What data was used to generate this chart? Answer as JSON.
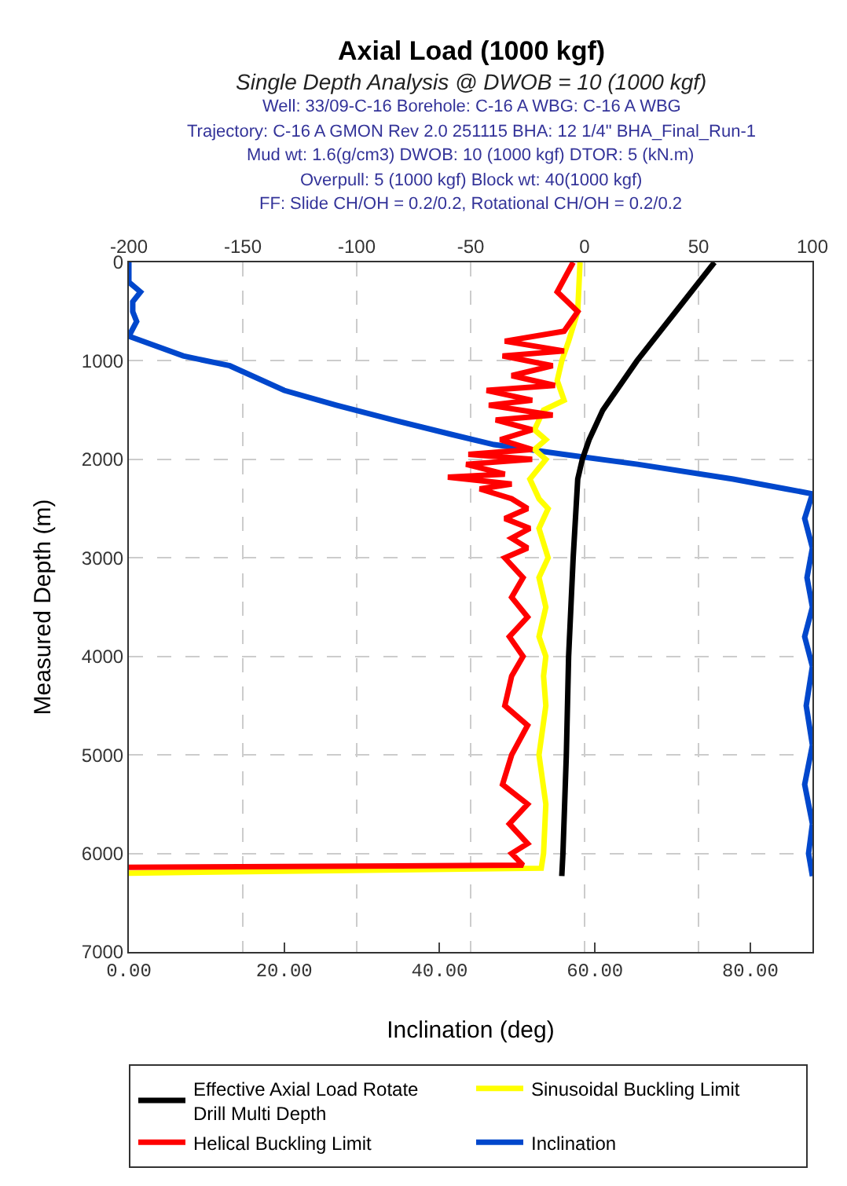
{
  "chart_data": {
    "type": "line",
    "title": "Axial Load (1000 kgf)",
    "subtitle": "Single Depth Analysis @ DWOB = 10 (1000 kgf)",
    "annotations": [
      "Well: 33/09-C-16 Borehole: C-16 A WBG: C-16 A WBG",
      "Trajectory: C-16 A GMON Rev 2.0 251115 BHA: 12 1/4\" BHA_Final_Run-1",
      "Mud wt: 1.6(g/cm3) DWOB: 10 (1000 kgf) DTOR: 5 (kN.m)",
      "Overpull: 5 (1000 kgf) Block wt: 40(1000 kgf)",
      "FF: Slide CH/OH = 0.2/0.2, Rotational CH/OH = 0.2/0.2"
    ],
    "xlabel": "Inclination (deg)",
    "ylabel": "Measured Depth (m)",
    "xlim": [
      0,
      88
    ],
    "xticks": [
      {
        "value": 0,
        "label": "0.00"
      },
      {
        "value": 20,
        "label": "20.00"
      },
      {
        "value": 40,
        "label": "40.00"
      },
      {
        "value": 60,
        "label": "60.00"
      },
      {
        "value": 80,
        "label": "80.00"
      }
    ],
    "x2lim": [
      -200,
      100
    ],
    "x2ticks": [
      -200,
      -150,
      -100,
      -50,
      0,
      50,
      100
    ],
    "ylim": [
      7000,
      0
    ],
    "yticks": [
      0,
      1000,
      2000,
      3000,
      4000,
      5000,
      6000,
      7000
    ],
    "grid": true,
    "legend": "bottom",
    "series": [
      {
        "name": "Effective Axial Load Rotate Drill Multi Depth",
        "color": "#000000",
        "axis": "x2",
        "x": [
          57,
          40,
          23,
          8,
          2,
          -1,
          -3,
          -5,
          -7,
          -8,
          -9.5,
          -10
        ],
        "values": [
          0,
          500,
          1000,
          1500,
          1800,
          2000,
          2200,
          3000,
          4000,
          5000,
          6000,
          6230
        ]
      },
      {
        "name": "Sinusoidal Buckling Limit",
        "color": "#ffff00",
        "axis": "x2",
        "x": [
          -2,
          -3,
          -7,
          -10,
          -12,
          -9,
          -18,
          -22,
          -17,
          -22,
          -17,
          -24,
          -20,
          -16,
          -20,
          -16,
          -20,
          -17,
          -20,
          -17,
          -18,
          -17,
          -20,
          -17,
          -18,
          -19,
          -200
        ],
        "values": [
          0,
          500,
          800,
          1000,
          1200,
          1400,
          1500,
          1700,
          1800,
          1900,
          2000,
          2200,
          2400,
          2500,
          2700,
          3000,
          3200,
          3500,
          3800,
          4000,
          4200,
          4500,
          5000,
          5500,
          6000,
          6150,
          6200
        ]
      },
      {
        "name": "Helical Buckling Limit",
        "color": "#ff0000",
        "axis": "x2",
        "x": [
          -5,
          -12,
          -3,
          -9,
          -35,
          -9,
          -36,
          -14,
          -32,
          -13,
          -43,
          -23,
          -42,
          -14,
          -39,
          -23,
          -37,
          -23,
          -51,
          -23,
          -52,
          -35,
          -60,
          -32,
          -46,
          -32,
          -25,
          -35,
          -24,
          -32,
          -25,
          -35,
          -27,
          -32,
          -25,
          -33,
          -27,
          -32,
          -35,
          -25,
          -32,
          -36,
          -25,
          -33,
          -25,
          -32,
          -27,
          -200
        ],
        "values": [
          0,
          300,
          500,
          700,
          800,
          900,
          950,
          1050,
          1150,
          1250,
          1300,
          1400,
          1450,
          1550,
          1600,
          1700,
          1800,
          1900,
          1950,
          2000,
          2050,
          2150,
          2180,
          2250,
          2300,
          2400,
          2500,
          2600,
          2700,
          2800,
          2900,
          3000,
          3200,
          3400,
          3600,
          3800,
          4000,
          4200,
          4500,
          4700,
          5000,
          5300,
          5500,
          5700,
          5900,
          6000,
          6120,
          6140
        ]
      },
      {
        "name": "Inclination",
        "color": "#0047cc",
        "x": [
          0,
          0,
          1.5,
          0.5,
          0.5,
          1,
          0,
          7,
          13,
          20,
          26.7,
          34,
          41.7,
          47,
          56,
          65.5,
          77.8,
          84.6,
          88,
          87,
          88,
          87.3,
          88,
          87,
          88,
          87.2,
          88,
          87,
          88,
          87.5,
          88
        ],
        "values": [
          0,
          200,
          300,
          400,
          500,
          600,
          750,
          950,
          1050,
          1300,
          1450,
          1600,
          1750,
          1850,
          1950,
          2050,
          2200,
          2300,
          2350,
          2600,
          2900,
          3200,
          3500,
          3800,
          4100,
          4500,
          4900,
          5300,
          5700,
          6000,
          6230
        ]
      }
    ]
  }
}
